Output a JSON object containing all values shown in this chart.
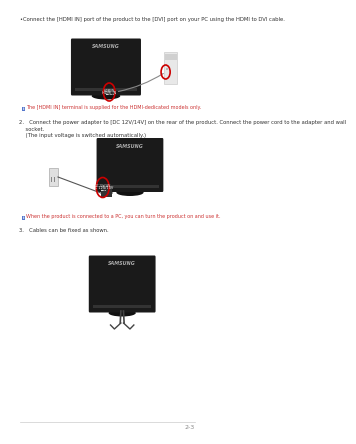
{
  "bg_color": "#ffffff",
  "page_num": "2-3",
  "bullet_text_1": "•Connect the [HDMI IN] port of the product to the [DVI] port on your PC using the HDMI to DVI cable.",
  "note_1": "The [HDMI IN] terminal is supplied for the HDMI-dedicated models only.",
  "step2_text": "2. Connect the power adapter to [DC 12V/14V] on the rear of the product. Connect the power cord to the adapter and wall\n    socket.\n    (The input voltage is switched automatically.)",
  "note_2": "When the product is connected to a PC, you can turn the product on and use it.",
  "step3_text": "3. Cables can be fixed as shown.",
  "monitor_color": "#1a1a1a",
  "monitor_highlight": "#2d2d2d",
  "circle_color": "#cc0000",
  "samsung_color": "#aaaaaa",
  "note_color": "#cc3333",
  "text_color": "#333333",
  "light_gray": "#bbbbbb",
  "footer_line_color": "#cccccc"
}
